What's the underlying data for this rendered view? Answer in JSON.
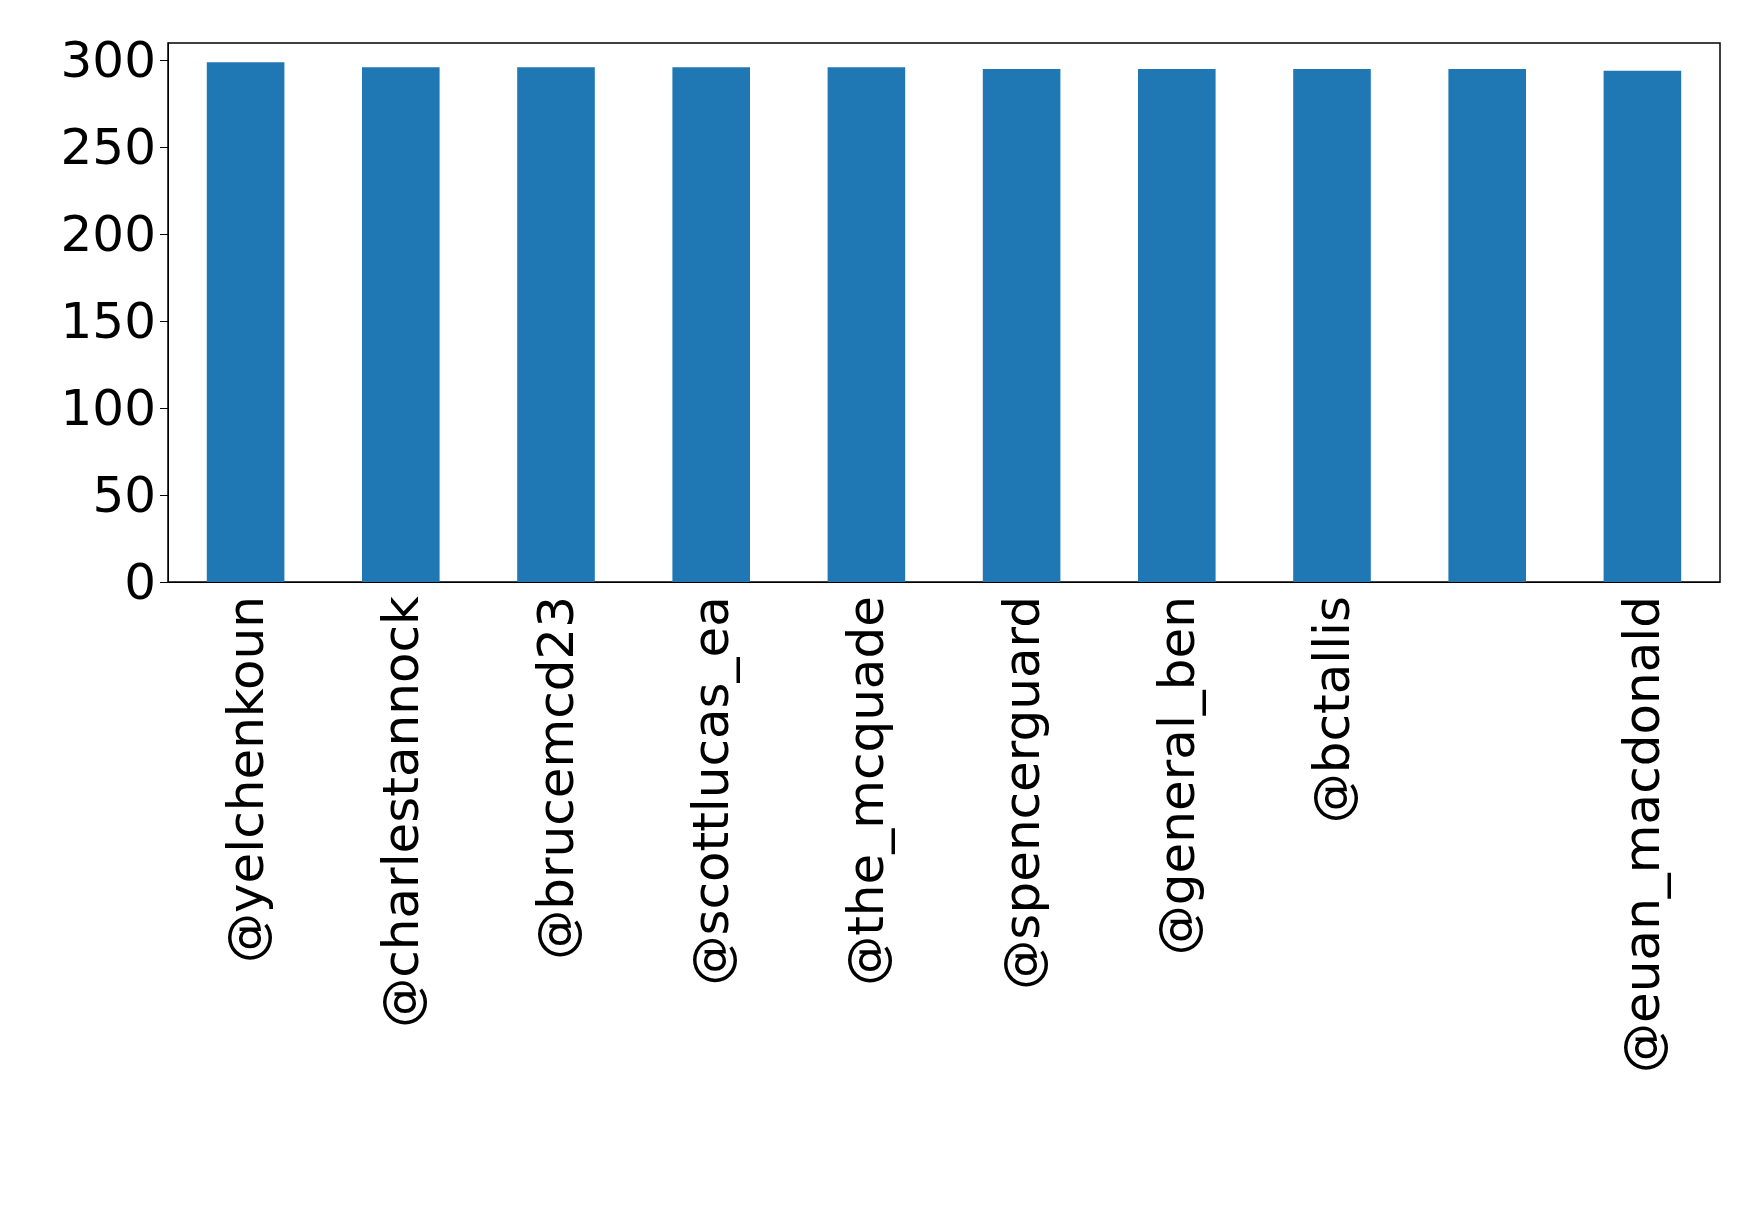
{
  "chart_data": {
    "type": "bar",
    "categories": [
      "@yelchenkoun",
      "@charlestannock",
      "@brucemcd23",
      "@scottlucas_ea",
      "@the_mcquade",
      "@spencerguard",
      "@general_ben",
      "@bctallis",
      null,
      "@euan_macdonald"
    ],
    "values": [
      299,
      296,
      296,
      296,
      296,
      295,
      295,
      295,
      295,
      294
    ],
    "color": "#1f77b4",
    "ylim": [
      0,
      310
    ],
    "yticks": [
      0,
      50,
      100,
      150,
      200,
      250,
      300
    ],
    "grid": false
  }
}
